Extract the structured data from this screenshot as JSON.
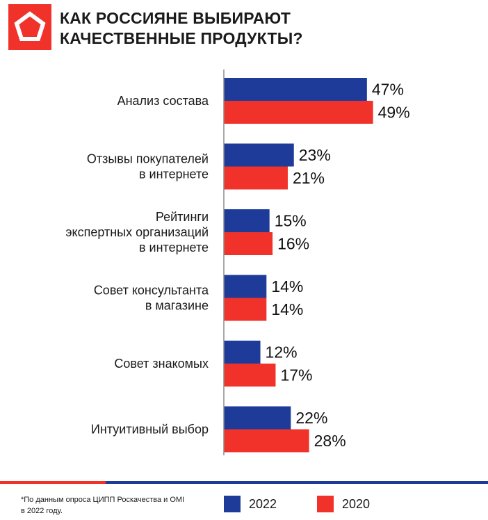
{
  "header": {
    "title_lines": [
      "КАК РОССИЯНЕ ВЫБИРАЮТ",
      "КАЧЕСТВЕННЫЕ ПРОДУКТЫ?"
    ],
    "logo_icon": "pentagon-logo-icon"
  },
  "colors": {
    "series_2022": "#1e3b9a",
    "series_2020": "#f0322b",
    "axis": "#8c8c8c"
  },
  "chart_data": {
    "type": "bar",
    "orientation": "horizontal",
    "categories": [
      [
        "Анализ состава"
      ],
      [
        "Отзывы покупателей",
        "в интернете"
      ],
      [
        "Рейтинги",
        "экспертных организаций",
        "в интернете"
      ],
      [
        "Совет консультанта",
        "в магазине"
      ],
      [
        "Совет знакомых"
      ],
      [
        "Интуитивный выбор"
      ]
    ],
    "series": [
      {
        "name": "2022",
        "values": [
          47,
          23,
          15,
          14,
          12,
          22
        ]
      },
      {
        "name": "2020",
        "values": [
          49,
          21,
          16,
          14,
          17,
          28
        ]
      }
    ],
    "value_suffix": "%",
    "xlim": [
      0,
      100
    ],
    "grid": false,
    "legend_placement": "bottom-right"
  },
  "footer": {
    "note_lines": [
      "*По данным опроса ЦИПП Роскачества и OMI",
      "в 2022 году."
    ]
  }
}
